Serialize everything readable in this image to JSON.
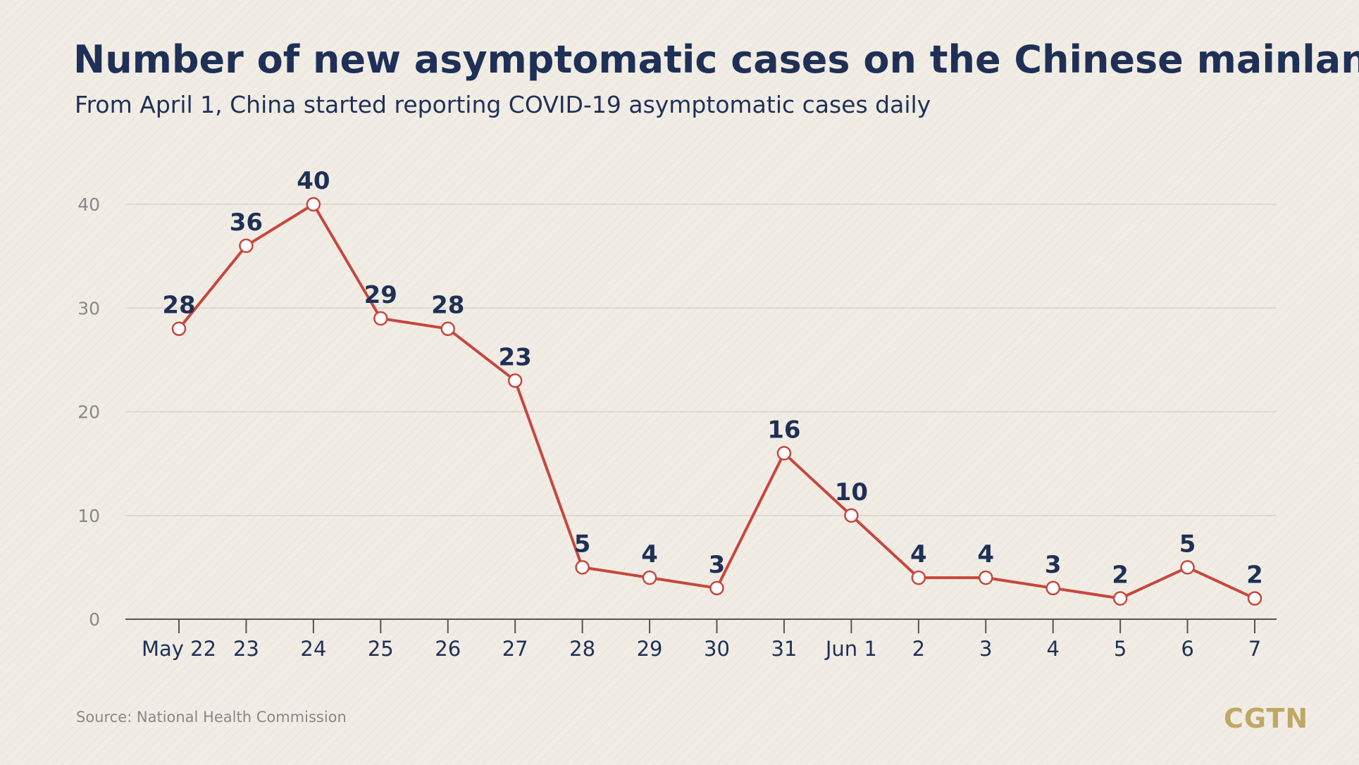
{
  "header": {
    "title": "Number of new asymptomatic cases on the Chinese mainland",
    "subtitle": "From April 1, China started reporting COVID-19 asymptomatic cases daily"
  },
  "footer": {
    "source": "Source: National Health Commission",
    "logo": "CGTN"
  },
  "colors": {
    "title": "#1f3056",
    "subtitle": "#1f3056",
    "line": "#c7473d",
    "marker_fill": "#ffffff",
    "data_label": "#1f3056",
    "tick_label": "#888888",
    "gridline": "#d8d3ca",
    "axis": "#555555",
    "x_tick_label": "#1f3056",
    "source": "#888888",
    "logo": "#bfa866"
  },
  "chart_data": {
    "type": "line",
    "title": "Number of new asymptomatic cases on the Chinese mainland",
    "subtitle": "From April 1, China started reporting COVID-19 asymptomatic cases daily",
    "xlabel": "",
    "ylabel": "",
    "categories": [
      "May 22",
      "23",
      "24",
      "25",
      "26",
      "27",
      "28",
      "29",
      "30",
      "31",
      "Jun 1",
      "2",
      "3",
      "4",
      "5",
      "6",
      "7"
    ],
    "series": [
      {
        "values": [
          28,
          36,
          40,
          29,
          28,
          23,
          5,
          4,
          3,
          16,
          10,
          4,
          4,
          3,
          2,
          5,
          2
        ]
      }
    ],
    "ylim": [
      0,
      40
    ],
    "yticks": [
      0,
      10,
      20,
      30,
      40
    ],
    "grid": true,
    "legend": "none"
  }
}
